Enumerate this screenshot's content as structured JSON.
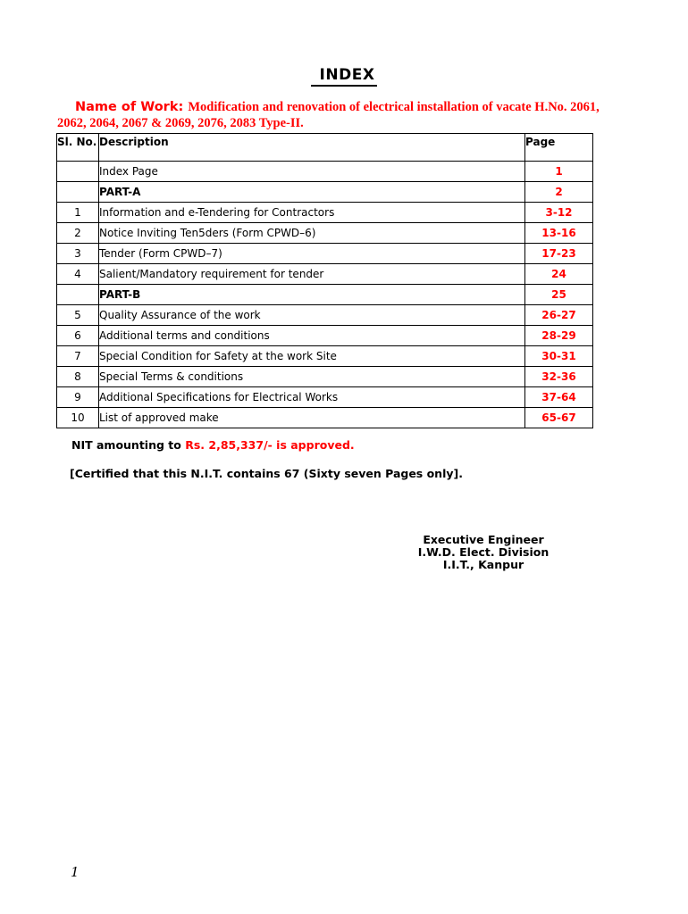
{
  "document": {
    "title": "INDEX",
    "page_number": "1"
  },
  "colors": {
    "accent_red": "#ff0000",
    "text": "#000000",
    "table_border": "#000000"
  },
  "name_of_work": {
    "label": "Name of Work",
    "separator": ": ",
    "line1": "Modification and renovation of electrical installation of vacate H.No. 2061,",
    "line2": "2062, 2064, 2067 & 2069, 2076, 2083 Type-II."
  },
  "toc_table": {
    "headers": {
      "sl": "Sl.\nNo.",
      "description": "Description",
      "page": "Page"
    },
    "rows": [
      {
        "sl": "",
        "description": "Index Page",
        "page": "1"
      },
      {
        "sl": "",
        "description": "PART-A",
        "page": "2"
      },
      {
        "sl": "1",
        "description": "Information and e-Tendering for Contractors",
        "page": "3-12"
      },
      {
        "sl": "2",
        "description": "Notice Inviting Ten5ders (Form CPWD–6)",
        "page": "13-16"
      },
      {
        "sl": "3",
        "description": "Tender (Form CPWD–7)",
        "page": "17-23"
      },
      {
        "sl": "4",
        "description": "Salient/Mandatory requirement for tender",
        "page": "24"
      },
      {
        "sl": "",
        "description": "PART-B",
        "page": "25"
      },
      {
        "sl": "5",
        "description": "Quality Assurance of the work",
        "page": "26-27"
      },
      {
        "sl": "6",
        "description": "Additional terms and conditions",
        "page": "28-29"
      },
      {
        "sl": "7",
        "description": "Special Condition for Safety at the work Site",
        "page": "30-31"
      },
      {
        "sl": "8",
        "description": "Special Terms & conditions",
        "page": "32-36"
      },
      {
        "sl": "9",
        "description": "Additional Specifications for Electrical Works",
        "page": "37-64"
      },
      {
        "sl": "10",
        "description": "List of approved make",
        "page": "65-67"
      }
    ]
  },
  "approval": {
    "prefix": "NIT amounting to ",
    "highlight": "Rs. 2,85,337/- is approved."
  },
  "certification": "[Certified that this N.I.T. contains 67 (Sixty seven Pages only].",
  "signature": {
    "lines": [
      "Executive Engineer",
      "I.W.D. Elect. Division",
      "I.I.T., Kanpur"
    ]
  }
}
